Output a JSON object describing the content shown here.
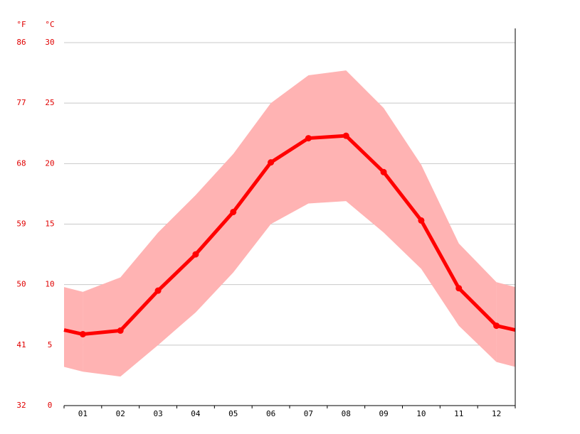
{
  "chart_data": {
    "type": "line",
    "ylabel": "°C",
    "y2label": "°F",
    "categories": [
      "01",
      "02",
      "03",
      "04",
      "05",
      "06",
      "07",
      "08",
      "09",
      "10",
      "11",
      "12"
    ],
    "series": [
      {
        "color": "#ff0000",
        "values": [
          5.9,
          6.2,
          9.5,
          12.5,
          16.0,
          20.1,
          22.1,
          22.3,
          19.3,
          15.3,
          9.7,
          6.6
        ]
      }
    ],
    "band": {
      "color": "#ffb3b3",
      "high": [
        9.4,
        10.6,
        14.3,
        17.4,
        20.8,
        25.0,
        27.3,
        27.7,
        24.6,
        19.9,
        13.4,
        10.2
      ],
      "low": [
        2.8,
        2.4,
        5.0,
        7.7,
        11.0,
        15.0,
        16.7,
        16.9,
        14.3,
        11.3,
        6.6,
        3.6
      ]
    },
    "ylim": [
      0,
      30
    ],
    "yticks": [
      0,
      5,
      10,
      15,
      20,
      25,
      30
    ],
    "y2lim": [
      32,
      86
    ],
    "y2ticks": [
      32,
      41,
      50,
      59,
      68,
      77,
      86
    ],
    "grid": true
  }
}
